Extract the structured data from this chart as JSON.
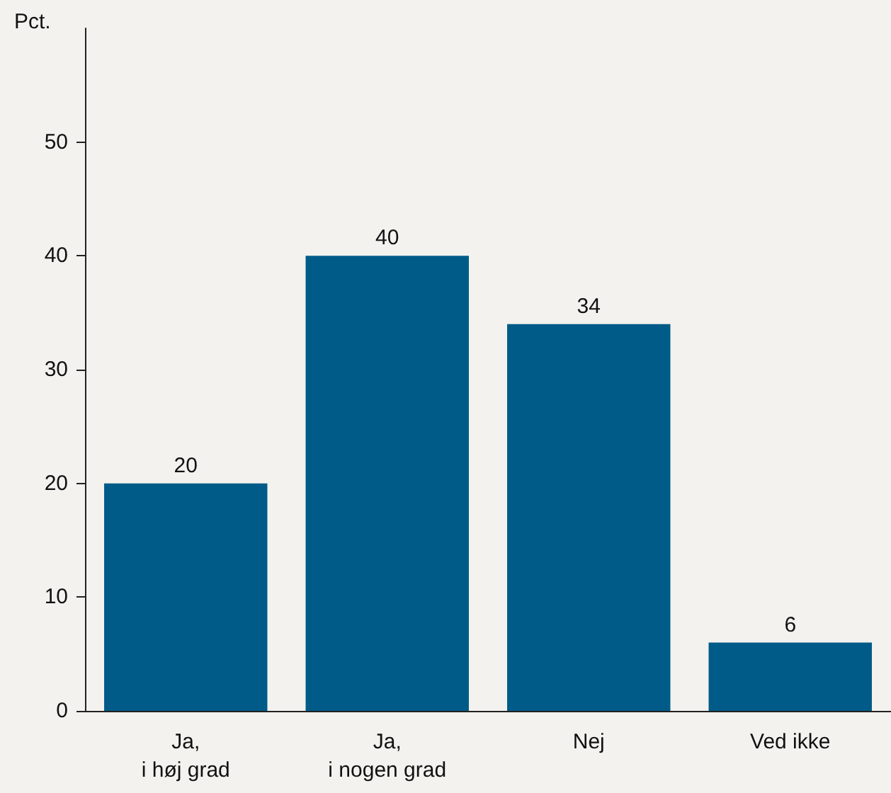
{
  "chart_data": {
    "type": "bar",
    "ylabel": "Pct.",
    "categories": [
      "Ja,\ni høj grad",
      "Ja,\ni nogen grad",
      "Nej",
      "Ved ikke"
    ],
    "values": [
      20,
      40,
      34,
      6
    ],
    "color": "#005b88",
    "ylim": [
      0,
      60
    ],
    "yticks": [
      0,
      10,
      20,
      30,
      40,
      50
    ],
    "grid": false,
    "data_labels": true
  }
}
